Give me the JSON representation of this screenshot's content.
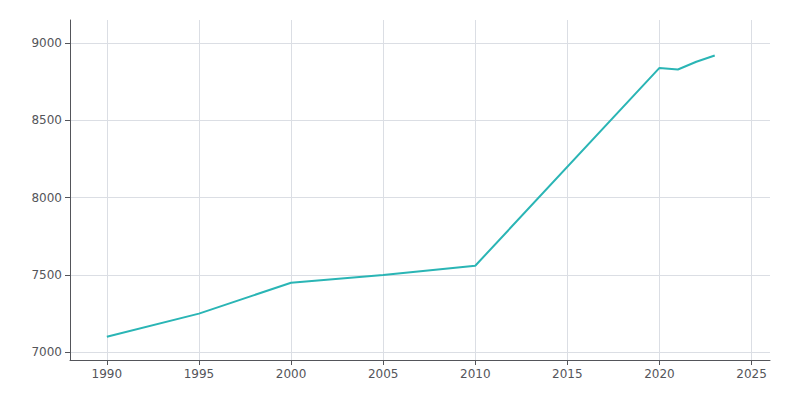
{
  "chart_data": {
    "type": "line",
    "x": [
      1990,
      1995,
      2000,
      2005,
      2010,
      2020,
      2021,
      2022,
      2023
    ],
    "values": [
      7100,
      7250,
      7450,
      7500,
      7560,
      8840,
      8830,
      8880,
      8920
    ],
    "color": "#2ab5b5",
    "xlim": [
      1988,
      2026
    ],
    "ylim": [
      6950,
      9150
    ],
    "xticks": [
      1990,
      1995,
      2000,
      2005,
      2010,
      2015,
      2020,
      2025
    ],
    "yticks": [
      7000,
      7500,
      8000,
      8500,
      9000
    ],
    "grid": true
  }
}
